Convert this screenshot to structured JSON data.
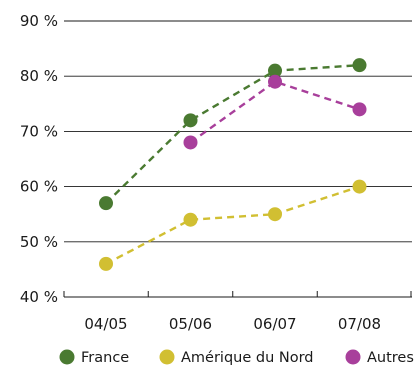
{
  "chart_data": {
    "type": "line",
    "title": "",
    "xlabel": "",
    "ylabel": "",
    "categories": [
      "04/05",
      "05/06",
      "06/07",
      "07/08"
    ],
    "y_ticks": [
      40,
      50,
      60,
      70,
      80,
      90
    ],
    "y_tick_labels": [
      "40 %",
      "50 %",
      "60 %",
      "70 %",
      "80 %",
      "90 %"
    ],
    "ylim": [
      40,
      90
    ],
    "grid": true,
    "legend_position": "bottom",
    "series": [
      {
        "name": "France",
        "color": "#4a7a31",
        "values": [
          57,
          72,
          81,
          82
        ]
      },
      {
        "name": "Amérique du Nord",
        "color": "#d1bf32",
        "values": [
          46,
          54,
          55,
          60
        ]
      },
      {
        "name": "Autres",
        "color": "#a83f9b",
        "values": [
          null,
          68,
          79,
          74
        ]
      }
    ]
  }
}
